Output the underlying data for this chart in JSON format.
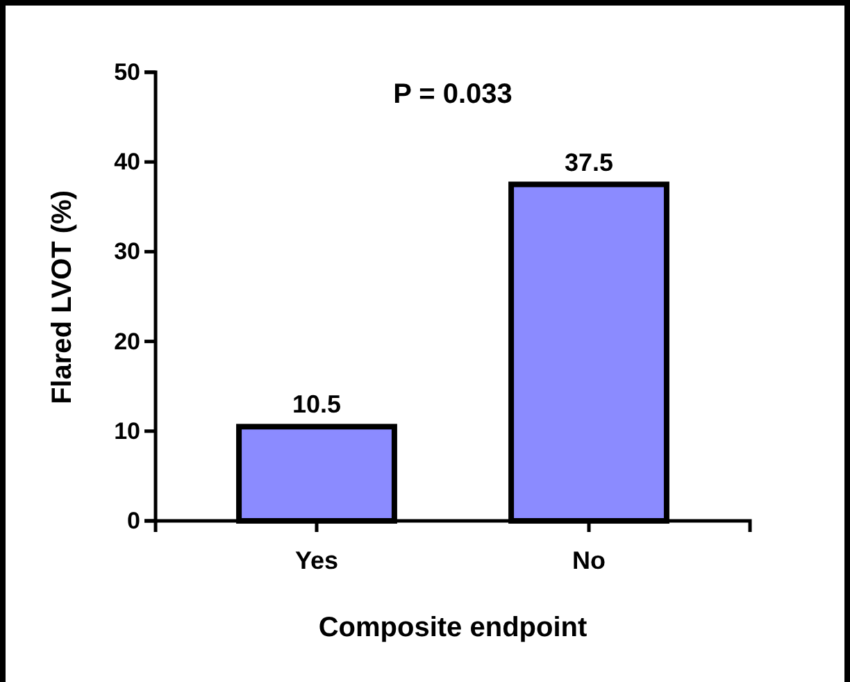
{
  "chart_data": {
    "type": "bar",
    "xlabel": "Composite endpoint",
    "ylabel": "Flared LVOT (%)",
    "categories": [
      "Yes",
      "No"
    ],
    "values": [
      10.5,
      37.5
    ],
    "color": "#8b8bff",
    "ylim": [
      0,
      50
    ],
    "yticks": [
      0,
      10,
      20,
      30,
      40,
      50
    ],
    "data_labels": true,
    "annotations": [
      "P = 0.033"
    ]
  }
}
